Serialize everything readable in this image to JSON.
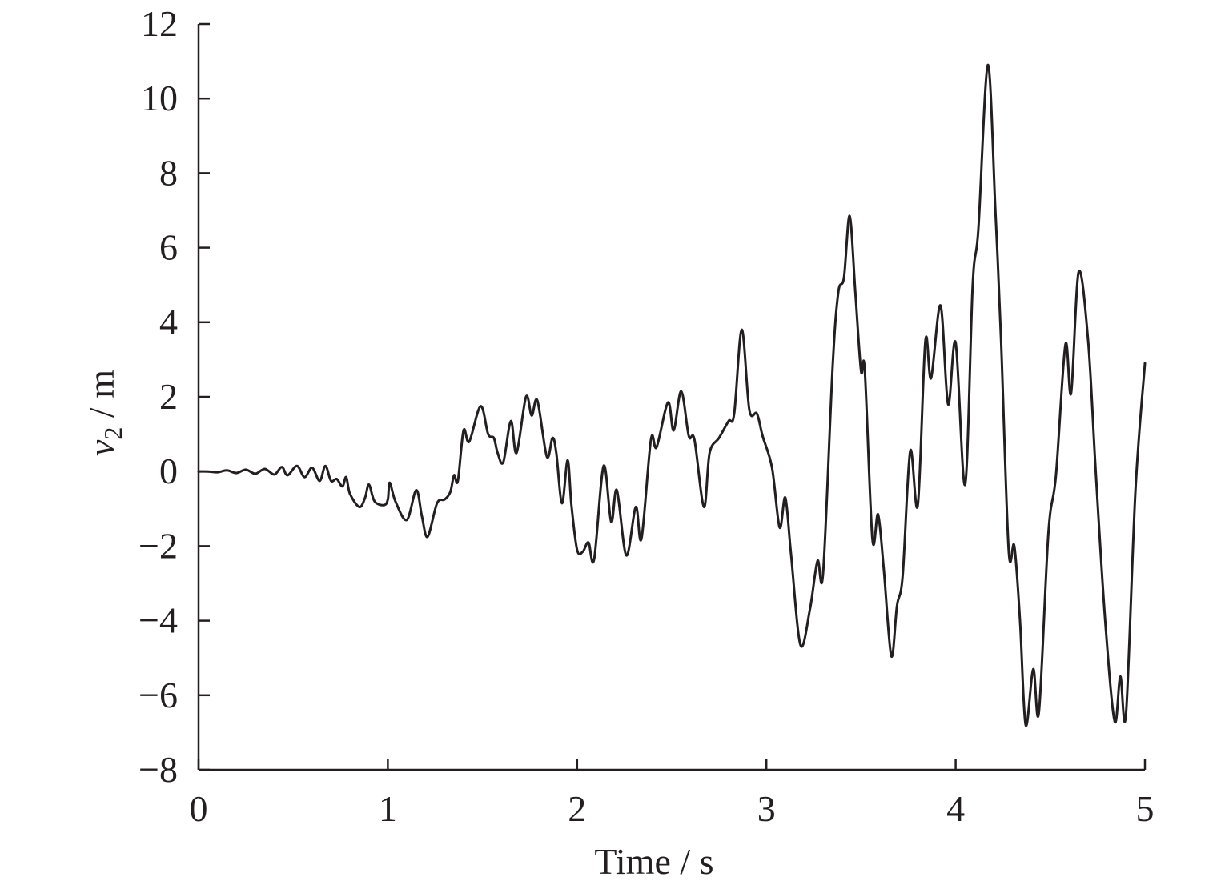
{
  "chart_data": {
    "type": "line",
    "title": "",
    "xlabel": "Time / s",
    "ylabel": {
      "var": "v",
      "sub": "2",
      "rest": " / m"
    },
    "xlim": [
      0,
      5
    ],
    "ylim": [
      -8,
      12
    ],
    "xticks": [
      0,
      1,
      2,
      3,
      4,
      5
    ],
    "xtick_labels": [
      "0",
      "1",
      "2",
      "3",
      "4",
      "5"
    ],
    "yticks": [
      -8,
      -6,
      -4,
      -2,
      0,
      2,
      4,
      6,
      8,
      10,
      12
    ],
    "ytick_labels": [
      "−8",
      "−6",
      "−4",
      "−2",
      "0",
      "2",
      "4",
      "6",
      "8",
      "10",
      "12"
    ],
    "grid": false,
    "legend": "none",
    "series": [
      {
        "color": "#231f20",
        "points": [
          [
            0.0,
            0.0
          ],
          [
            0.05,
            0.0
          ],
          [
            0.1,
            -0.02
          ],
          [
            0.15,
            0.03
          ],
          [
            0.2,
            -0.04
          ],
          [
            0.25,
            0.05
          ],
          [
            0.3,
            -0.06
          ],
          [
            0.35,
            0.07
          ],
          [
            0.4,
            -0.08
          ],
          [
            0.44,
            0.12
          ],
          [
            0.47,
            -0.1
          ],
          [
            0.52,
            0.15
          ],
          [
            0.56,
            -0.15
          ],
          [
            0.6,
            0.1
          ],
          [
            0.64,
            -0.25
          ],
          [
            0.67,
            0.15
          ],
          [
            0.7,
            -0.25
          ],
          [
            0.73,
            -0.2
          ],
          [
            0.76,
            -0.4
          ],
          [
            0.78,
            -0.15
          ],
          [
            0.8,
            -0.6
          ],
          [
            0.85,
            -0.95
          ],
          [
            0.88,
            -0.7
          ],
          [
            0.9,
            -0.35
          ],
          [
            0.93,
            -0.8
          ],
          [
            0.98,
            -0.9
          ],
          [
            1.0,
            -0.75
          ],
          [
            1.01,
            -0.3
          ],
          [
            1.04,
            -0.8
          ],
          [
            1.1,
            -1.3
          ],
          [
            1.15,
            -0.5
          ],
          [
            1.18,
            -1.2
          ],
          [
            1.21,
            -1.75
          ],
          [
            1.26,
            -0.85
          ],
          [
            1.3,
            -0.75
          ],
          [
            1.33,
            -0.55
          ],
          [
            1.35,
            -0.1
          ],
          [
            1.37,
            -0.25
          ],
          [
            1.4,
            1.1
          ],
          [
            1.43,
            0.8
          ],
          [
            1.49,
            1.75
          ],
          [
            1.53,
            1.0
          ],
          [
            1.56,
            0.9
          ],
          [
            1.58,
            0.5
          ],
          [
            1.61,
            0.25
          ],
          [
            1.65,
            1.35
          ],
          [
            1.68,
            0.5
          ],
          [
            1.73,
            2.0
          ],
          [
            1.76,
            1.5
          ],
          [
            1.79,
            1.9
          ],
          [
            1.84,
            0.4
          ],
          [
            1.87,
            0.9
          ],
          [
            1.89,
            0.5
          ],
          [
            1.92,
            -0.85
          ],
          [
            1.95,
            0.3
          ],
          [
            1.97,
            -0.9
          ],
          [
            2.0,
            -2.1
          ],
          [
            2.03,
            -2.15
          ],
          [
            2.06,
            -1.9
          ],
          [
            2.09,
            -2.35
          ],
          [
            2.14,
            0.15
          ],
          [
            2.18,
            -1.35
          ],
          [
            2.21,
            -0.5
          ],
          [
            2.26,
            -2.25
          ],
          [
            2.31,
            -0.95
          ],
          [
            2.34,
            -1.8
          ],
          [
            2.39,
            0.85
          ],
          [
            2.42,
            0.65
          ],
          [
            2.48,
            1.85
          ],
          [
            2.51,
            1.1
          ],
          [
            2.55,
            2.15
          ],
          [
            2.59,
            0.95
          ],
          [
            2.62,
            0.85
          ],
          [
            2.67,
            -0.95
          ],
          [
            2.7,
            0.5
          ],
          [
            2.75,
            0.9
          ],
          [
            2.8,
            1.35
          ],
          [
            2.83,
            1.55
          ],
          [
            2.87,
            3.8
          ],
          [
            2.91,
            1.65
          ],
          [
            2.95,
            1.55
          ],
          [
            2.98,
            0.95
          ],
          [
            3.03,
            0.1
          ],
          [
            3.07,
            -1.5
          ],
          [
            3.1,
            -0.7
          ],
          [
            3.13,
            -2.2
          ],
          [
            3.18,
            -4.65
          ],
          [
            3.23,
            -3.7
          ],
          [
            3.27,
            -2.4
          ],
          [
            3.3,
            -2.7
          ],
          [
            3.35,
            2.8
          ],
          [
            3.38,
            4.8
          ],
          [
            3.41,
            5.2
          ],
          [
            3.44,
            6.85
          ],
          [
            3.47,
            4.8
          ],
          [
            3.5,
            2.7
          ],
          [
            3.52,
            2.7
          ],
          [
            3.56,
            -1.8
          ],
          [
            3.59,
            -1.15
          ],
          [
            3.62,
            -2.6
          ],
          [
            3.66,
            -4.95
          ],
          [
            3.69,
            -3.6
          ],
          [
            3.72,
            -2.8
          ],
          [
            3.76,
            0.55
          ],
          [
            3.8,
            -0.9
          ],
          [
            3.84,
            3.5
          ],
          [
            3.87,
            2.5
          ],
          [
            3.92,
            4.45
          ],
          [
            3.96,
            1.8
          ],
          [
            4.0,
            3.45
          ],
          [
            4.05,
            -0.35
          ],
          [
            4.09,
            5.0
          ],
          [
            4.12,
            6.5
          ],
          [
            4.17,
            10.9
          ],
          [
            4.21,
            7.0
          ],
          [
            4.24,
            3.5
          ],
          [
            4.28,
            -2.1
          ],
          [
            4.31,
            -2.0
          ],
          [
            4.34,
            -4.0
          ],
          [
            4.37,
            -6.8
          ],
          [
            4.41,
            -5.3
          ],
          [
            4.44,
            -6.45
          ],
          [
            4.49,
            -1.65
          ],
          [
            4.53,
            -0.1
          ],
          [
            4.58,
            3.4
          ],
          [
            4.61,
            2.1
          ],
          [
            4.65,
            5.35
          ],
          [
            4.7,
            3.5
          ],
          [
            4.74,
            0.0
          ],
          [
            4.79,
            -4.0
          ],
          [
            4.84,
            -6.7
          ],
          [
            4.87,
            -5.5
          ],
          [
            4.9,
            -6.5
          ],
          [
            4.95,
            -0.5
          ],
          [
            5.0,
            2.9
          ]
        ]
      }
    ]
  }
}
